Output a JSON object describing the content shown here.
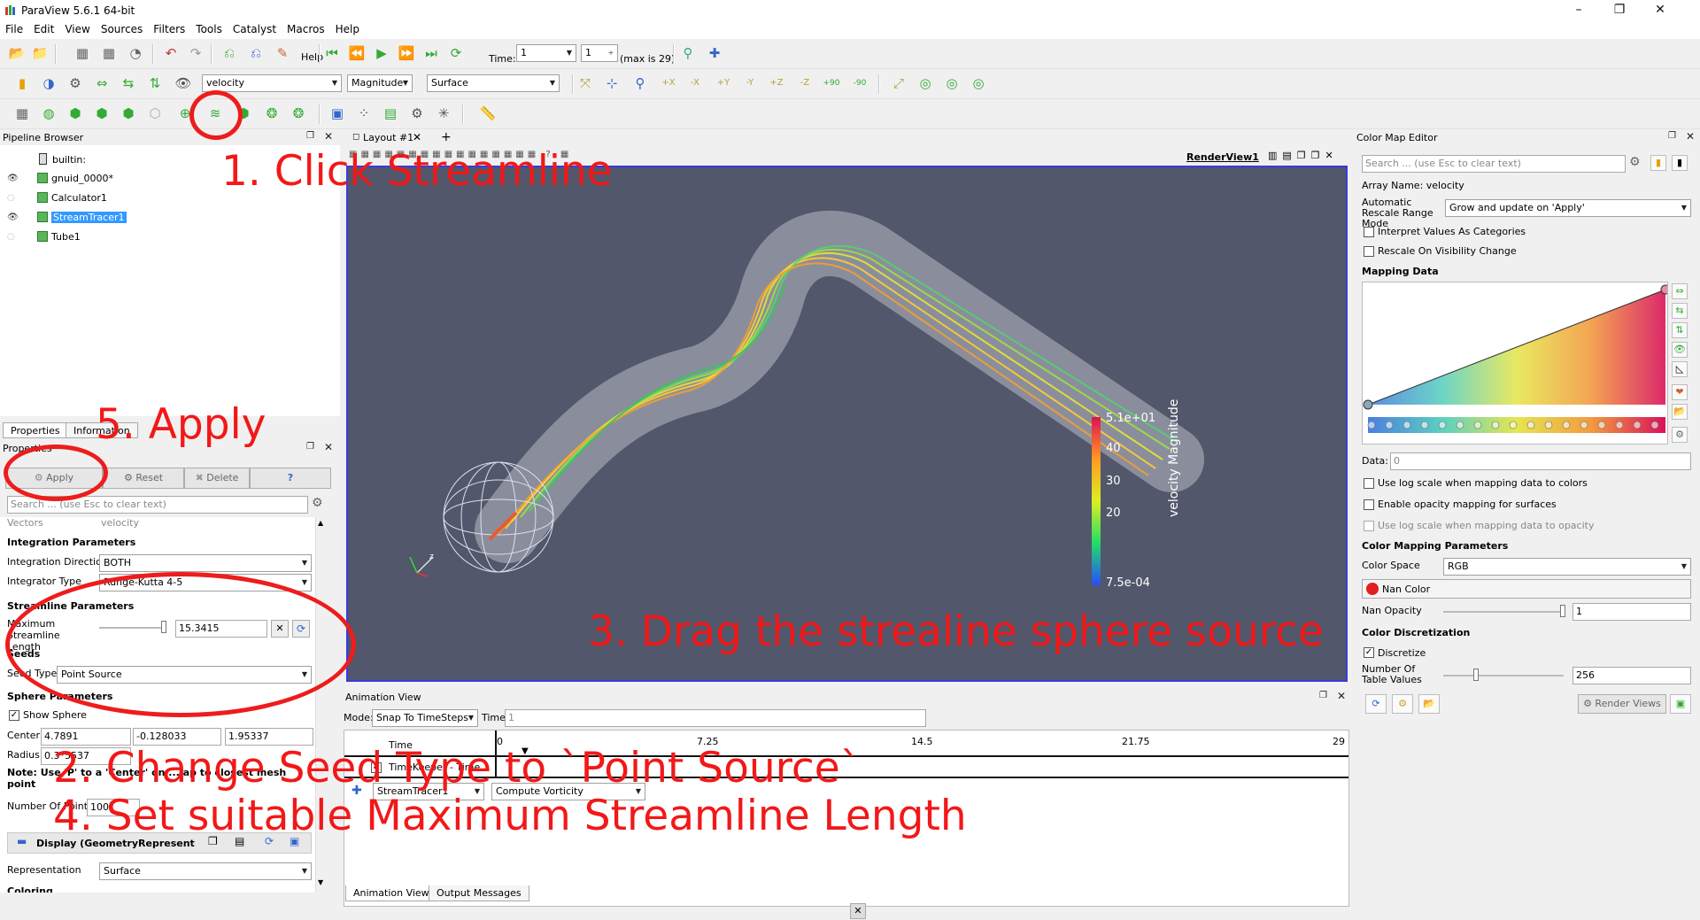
{
  "window": {
    "title": "ParaView 5.6.1 64-bit",
    "controls": [
      "–",
      "❐",
      "✕"
    ]
  },
  "menu": [
    "File",
    "Edit",
    "View",
    "Sources",
    "Filters",
    "Tools",
    "Catalyst",
    "Macros",
    "Help"
  ],
  "toolbar": {
    "time_label": "Time:",
    "time_value": "1",
    "time_index": "1",
    "time_max": "(max is 29)",
    "array_combo": "velocity",
    "component_combo": "Magnitude",
    "representation_combo": "Surface",
    "view_buttons": [
      "+X",
      "-X",
      "+Y",
      "-Y",
      "+Z",
      "-Z"
    ],
    "rotate_labels": [
      "+90",
      "-90"
    ]
  },
  "pipeline": {
    "title": "Pipeline Browser",
    "items": [
      {
        "label": "builtin:"
      },
      {
        "label": "gnuid_0000*"
      },
      {
        "label": "Calculator1"
      },
      {
        "label": "StreamTracer1"
      },
      {
        "label": "Tube1"
      }
    ]
  },
  "properties": {
    "tabs": [
      "Properties",
      "Information"
    ],
    "title": "Properties",
    "apply": "Apply",
    "reset": "Reset",
    "delete": "Delete",
    "help": "?",
    "search_placeholder": "Search ... (use Esc to clear text)",
    "vectors_label": "Vectors",
    "vectors_value": "velocity",
    "integration_section": "Integration Parameters",
    "integration_direction_label": "Integration Direction",
    "integration_direction_value": "BOTH",
    "integrator_type_label": "Integrator Type",
    "integrator_type_value": "Runge-Kutta 4-5",
    "streamline_section": "Streamline Parameters",
    "max_length_label": "Maximum Streamline Length",
    "max_length_value": "15.3415",
    "seeds_section": "Seeds",
    "seed_type_label": "Seed Type",
    "seed_type_value": "Point Source",
    "sphere_section": "Sphere Parameters",
    "show_sphere": "Show Sphere",
    "center_label": "Center",
    "center_values": [
      "4.7891",
      "-0.128033",
      "1.95337"
    ],
    "radius_label": "Radius",
    "radius_value": "0.3*5537",
    "note": "Note: Use 'P' to a 'Center' on ... ap to closest mesh point",
    "num_points_label": "Number Of Points",
    "num_points_value": "100",
    "display_section": "Display (GeometryRepresent",
    "representation_label": "Representation",
    "representation_value": "Surface",
    "coloring_section": "Coloring"
  },
  "layout": {
    "tab": "Layout #1",
    "view_name": "RenderView1"
  },
  "scalar_bar": {
    "title": "velocity Magnitude",
    "ticks": [
      "5.1e+01",
      "40",
      "30",
      "20",
      "7.5e-04"
    ]
  },
  "animation": {
    "title": "Animation View",
    "mode_label": "Mode:",
    "mode_value": "Snap To TimeSteps",
    "time_label": "Time",
    "time_value": "1",
    "row_time": "Time",
    "row_time_keeper": "TimeKeeper - Time",
    "ruler": [
      "0",
      "7.25",
      "14.5",
      "21.75",
      "29"
    ],
    "source_combo": "StreamTracer1",
    "property_combo": "Compute Vorticity",
    "tabs": [
      "Animation View",
      "Output Messages"
    ]
  },
  "colormap": {
    "title": "Color Map Editor",
    "search_placeholder": "Search ... (use Esc to clear text)",
    "array_name": "Array Name: velocity",
    "auto_rescale_label": "Automatic Rescale Range Mode",
    "auto_rescale_value": "Grow and update on 'Apply'",
    "interpret_categories": "Interpret Values As Categories",
    "rescale_visibility": "Rescale On Visibility Change",
    "mapping_data": "Mapping Data",
    "data_label": "Data:",
    "data_value": "0",
    "log_scale": "Use log scale when mapping data to colors",
    "opacity_mapping": "Enable opacity mapping for surfaces",
    "log_opacity": "Use log scale when mapping data to opacity",
    "color_params": "Color Mapping Parameters",
    "color_space_label": "Color Space",
    "color_space_value": "RGB",
    "nan_color": "Nan Color",
    "nan_opacity_label": "Nan Opacity",
    "nan_opacity_value": "1",
    "discretization": "Color Discretization",
    "discretize": "Discretize",
    "table_values_label": "Number Of Table Values",
    "table_values_value": "256",
    "render_views": "Render Views"
  },
  "annotations": {
    "step1": "1. Click  Streamline",
    "step2": "2. Change Seed Type to `Point Source`",
    "step3": "3. Drag the strealine sphere source",
    "step4": "4. Set suitable Maximum Streamline Length",
    "step5": "5. Apply"
  },
  "colors": {
    "annotation": "#f21818",
    "render_bg": "#52576b",
    "active_border": "#3a3adf",
    "selection": "#3399ff"
  }
}
